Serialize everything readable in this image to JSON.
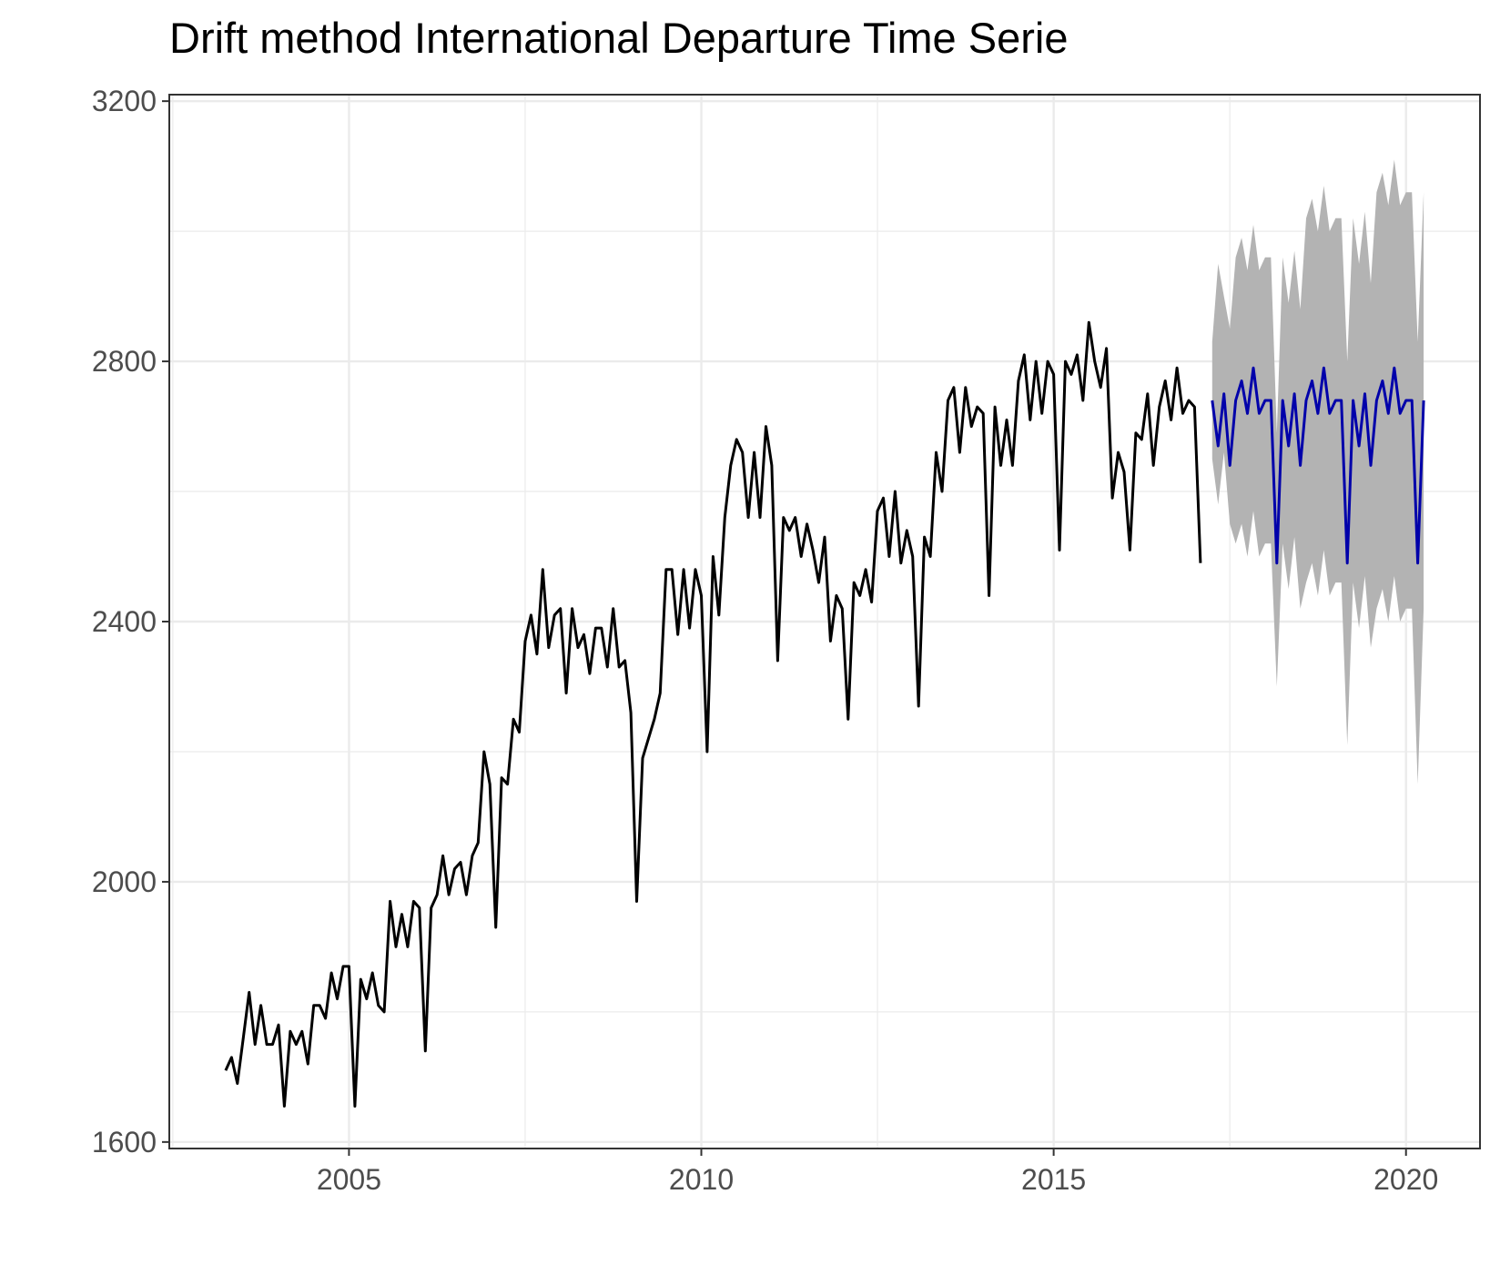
{
  "chart_data": {
    "type": "line",
    "title": "Drift method International Departure Time Serie",
    "xlabel": "",
    "ylabel": "",
    "xlim": [
      2002.45,
      2021.05
    ],
    "ylim": [
      1590,
      3210
    ],
    "x_ticks": [
      {
        "value": 2005,
        "label": "2005"
      },
      {
        "value": 2010,
        "label": "2010"
      },
      {
        "value": 2015,
        "label": "2015"
      },
      {
        "value": 2020,
        "label": "2020"
      }
    ],
    "y_ticks": [
      {
        "value": 1600,
        "label": "1600"
      },
      {
        "value": 2000,
        "label": "2000"
      },
      {
        "value": 2400,
        "label": "2400"
      },
      {
        "value": 2800,
        "label": "2800"
      },
      {
        "value": 3200,
        "label": "3200"
      }
    ],
    "x_minor": [
      2002.5,
      2007.5,
      2012.5,
      2017.5
    ],
    "y_minor": [
      1800,
      2200,
      2600,
      3000
    ],
    "grid": true,
    "colors": {
      "history": "#000000",
      "forecast": "#0000aa",
      "band": "#b3b3b3",
      "grid": "#ebebeb",
      "axis": "#333333"
    },
    "series": [
      {
        "role": "history",
        "start": 2003.25,
        "step": 0.08333,
        "values": [
          1710,
          1730,
          1690,
          1760,
          1830,
          1750,
          1810,
          1750,
          1750,
          1780,
          1655,
          1770,
          1750,
          1770,
          1720,
          1810,
          1810,
          1790,
          1860,
          1820,
          1870,
          1870,
          1655,
          1850,
          1820,
          1860,
          1810,
          1800,
          1970,
          1900,
          1950,
          1900,
          1970,
          1960,
          1740,
          1960,
          1980,
          2040,
          1980,
          2020,
          2030,
          1980,
          2040,
          2060,
          2200,
          2150,
          1930,
          2160,
          2150,
          2250,
          2230,
          2370,
          2410,
          2350,
          2480,
          2360,
          2410,
          2420,
          2290,
          2420,
          2360,
          2380,
          2320,
          2390,
          2390,
          2330,
          2420,
          2330,
          2340,
          2260,
          1970,
          2190,
          2220,
          2250,
          2290,
          2480,
          2480,
          2380,
          2480,
          2390,
          2480,
          2440,
          2200,
          2500,
          2410,
          2560,
          2640,
          2680,
          2660,
          2560,
          2660,
          2560,
          2700,
          2640,
          2340,
          2560,
          2540,
          2560,
          2500,
          2550,
          2510,
          2460,
          2530,
          2370,
          2440,
          2420,
          2250,
          2460,
          2440,
          2480,
          2430,
          2570,
          2590,
          2500,
          2600,
          2490,
          2540,
          2500,
          2270,
          2530,
          2500,
          2660,
          2600,
          2740,
          2760,
          2660,
          2760,
          2700,
          2730,
          2720,
          2440,
          2730,
          2640,
          2710,
          2640,
          2770,
          2810,
          2710,
          2800,
          2720,
          2800,
          2780,
          2510,
          2800,
          2780,
          2810,
          2740,
          2860,
          2800,
          2760,
          2820,
          2590,
          2660,
          2630,
          2510,
          2690,
          2680,
          2750,
          2640,
          2730,
          2770,
          2710,
          2790,
          2720,
          2740,
          2730,
          2490
        ]
      },
      {
        "role": "forecast",
        "start": 2017.25,
        "step": 0.08333,
        "values": [
          2740,
          2670,
          2750,
          2640,
          2740,
          2770,
          2720,
          2790,
          2720,
          2740,
          2740,
          2490,
          2740,
          2670,
          2750,
          2640,
          2740,
          2770,
          2720,
          2790,
          2720,
          2740,
          2740,
          2490,
          2740,
          2670,
          2750,
          2640,
          2740,
          2770,
          2720,
          2790,
          2720,
          2740,
          2740,
          2490,
          2740
        ],
        "lower_95": [
          2650,
          2580,
          2660,
          2550,
          2520,
          2550,
          2500,
          2570,
          2500,
          2520,
          2520,
          2300,
          2520,
          2450,
          2530,
          2420,
          2460,
          2490,
          2440,
          2510,
          2440,
          2460,
          2460,
          2210,
          2460,
          2390,
          2470,
          2360,
          2420,
          2450,
          2400,
          2470,
          2400,
          2420,
          2420,
          2150,
          2420
        ],
        "upper_95": [
          2830,
          2950,
          2900,
          2850,
          2960,
          2990,
          2940,
          3010,
          2940,
          2960,
          2960,
          2690,
          2960,
          2890,
          2970,
          2880,
          3020,
          3050,
          3000,
          3070,
          3000,
          3020,
          3020,
          2800,
          3020,
          2950,
          3030,
          2920,
          3060,
          3090,
          3040,
          3110,
          3040,
          3060,
          3060,
          2830,
          3060
        ]
      }
    ]
  }
}
